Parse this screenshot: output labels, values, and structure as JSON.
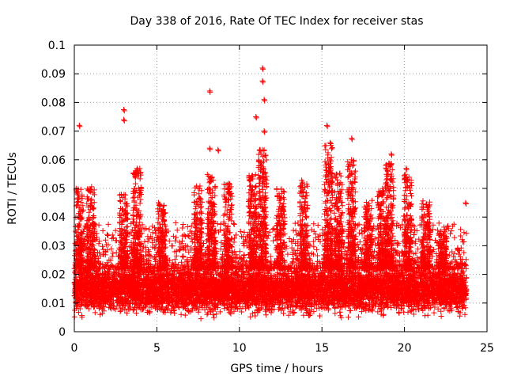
{
  "chart_data": {
    "type": "scatter",
    "title": "Day 338 of 2016, Rate Of TEC Index for receiver stas",
    "xlabel": "GPS time / hours",
    "ylabel": "ROTI / TECUs",
    "xlim": [
      0,
      25
    ],
    "ylim": [
      0,
      0.1
    ],
    "xticks": [
      0,
      5,
      10,
      15,
      20,
      25
    ],
    "xtick_labels": [
      "0",
      "5",
      "10",
      "15",
      "20",
      "25"
    ],
    "yticks": [
      0,
      0.01,
      0.02,
      0.03,
      0.04,
      0.05,
      0.06,
      0.07,
      0.08,
      0.09,
      0.1
    ],
    "ytick_labels": [
      "0",
      "0.01",
      "0.02",
      "0.03",
      "0.04",
      "0.05",
      "0.06",
      "0.07",
      "0.08",
      "0.09",
      "0.1"
    ],
    "grid": true,
    "marker": "+",
    "color": "#ff0000",
    "series": [
      {
        "name": "ROTI",
        "x_range": [
          0,
          23.75
        ],
        "core_band": [
          0.008,
          0.022
        ],
        "notable_points": [
          {
            "x": 0.3,
            "y": 0.072
          },
          {
            "x": 3.0,
            "y": 0.0775
          },
          {
            "x": 3.0,
            "y": 0.074
          },
          {
            "x": 8.2,
            "y": 0.084
          },
          {
            "x": 11.0,
            "y": 0.075
          },
          {
            "x": 11.4,
            "y": 0.092
          },
          {
            "x": 11.4,
            "y": 0.0875
          },
          {
            "x": 11.5,
            "y": 0.081
          },
          {
            "x": 15.3,
            "y": 0.072
          },
          {
            "x": 16.8,
            "y": 0.0675
          },
          {
            "x": 8.2,
            "y": 0.064
          },
          {
            "x": 8.7,
            "y": 0.0635
          },
          {
            "x": 19.2,
            "y": 0.062
          },
          {
            "x": 23.7,
            "y": 0.045
          },
          {
            "x": 3.8,
            "y": 0.057
          },
          {
            "x": 11.5,
            "y": 0.07
          },
          {
            "x": 15.5,
            "y": 0.066
          },
          {
            "x": 20.1,
            "y": 0.057
          }
        ],
        "spike_regions": [
          {
            "x": 0.3,
            "peak": 0.05
          },
          {
            "x": 1.0,
            "peak": 0.051
          },
          {
            "x": 3.0,
            "peak": 0.048
          },
          {
            "x": 3.8,
            "peak": 0.057
          },
          {
            "x": 5.3,
            "peak": 0.046
          },
          {
            "x": 7.5,
            "peak": 0.051
          },
          {
            "x": 8.3,
            "peak": 0.055
          },
          {
            "x": 9.3,
            "peak": 0.052
          },
          {
            "x": 10.8,
            "peak": 0.055
          },
          {
            "x": 11.4,
            "peak": 0.064
          },
          {
            "x": 12.5,
            "peak": 0.05
          },
          {
            "x": 13.9,
            "peak": 0.053
          },
          {
            "x": 15.4,
            "peak": 0.065
          },
          {
            "x": 16.0,
            "peak": 0.056
          },
          {
            "x": 16.8,
            "peak": 0.06
          },
          {
            "x": 17.8,
            "peak": 0.046
          },
          {
            "x": 18.6,
            "peak": 0.05
          },
          {
            "x": 19.1,
            "peak": 0.059
          },
          {
            "x": 20.2,
            "peak": 0.055
          },
          {
            "x": 21.3,
            "peak": 0.046
          },
          {
            "x": 22.3,
            "peak": 0.036
          }
        ]
      }
    ]
  }
}
